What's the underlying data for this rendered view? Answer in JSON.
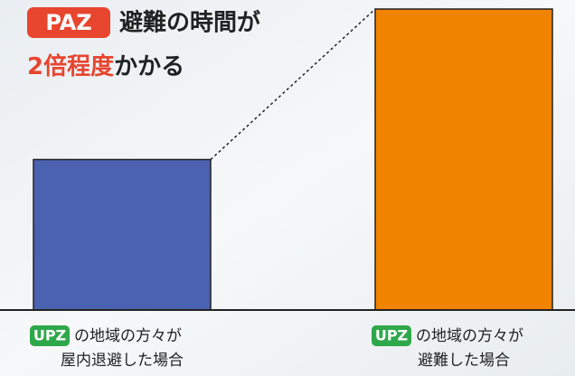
{
  "chart_data": {
    "type": "bar",
    "title": {
      "badge": "PAZ",
      "line1": "避難の時間が",
      "highlight": "2倍程度",
      "rest": "かかる"
    },
    "categories": [
      "屋内退避した場合",
      "避難した場合"
    ],
    "category_badges": [
      "UPZ",
      "UPZ"
    ],
    "category_subjects": [
      "の地域の方々が",
      "の地域の方々が"
    ],
    "values": [
      1,
      2
    ],
    "colors": [
      "#4a62b0",
      "#f08300"
    ],
    "ylim": [
      0,
      2
    ]
  }
}
